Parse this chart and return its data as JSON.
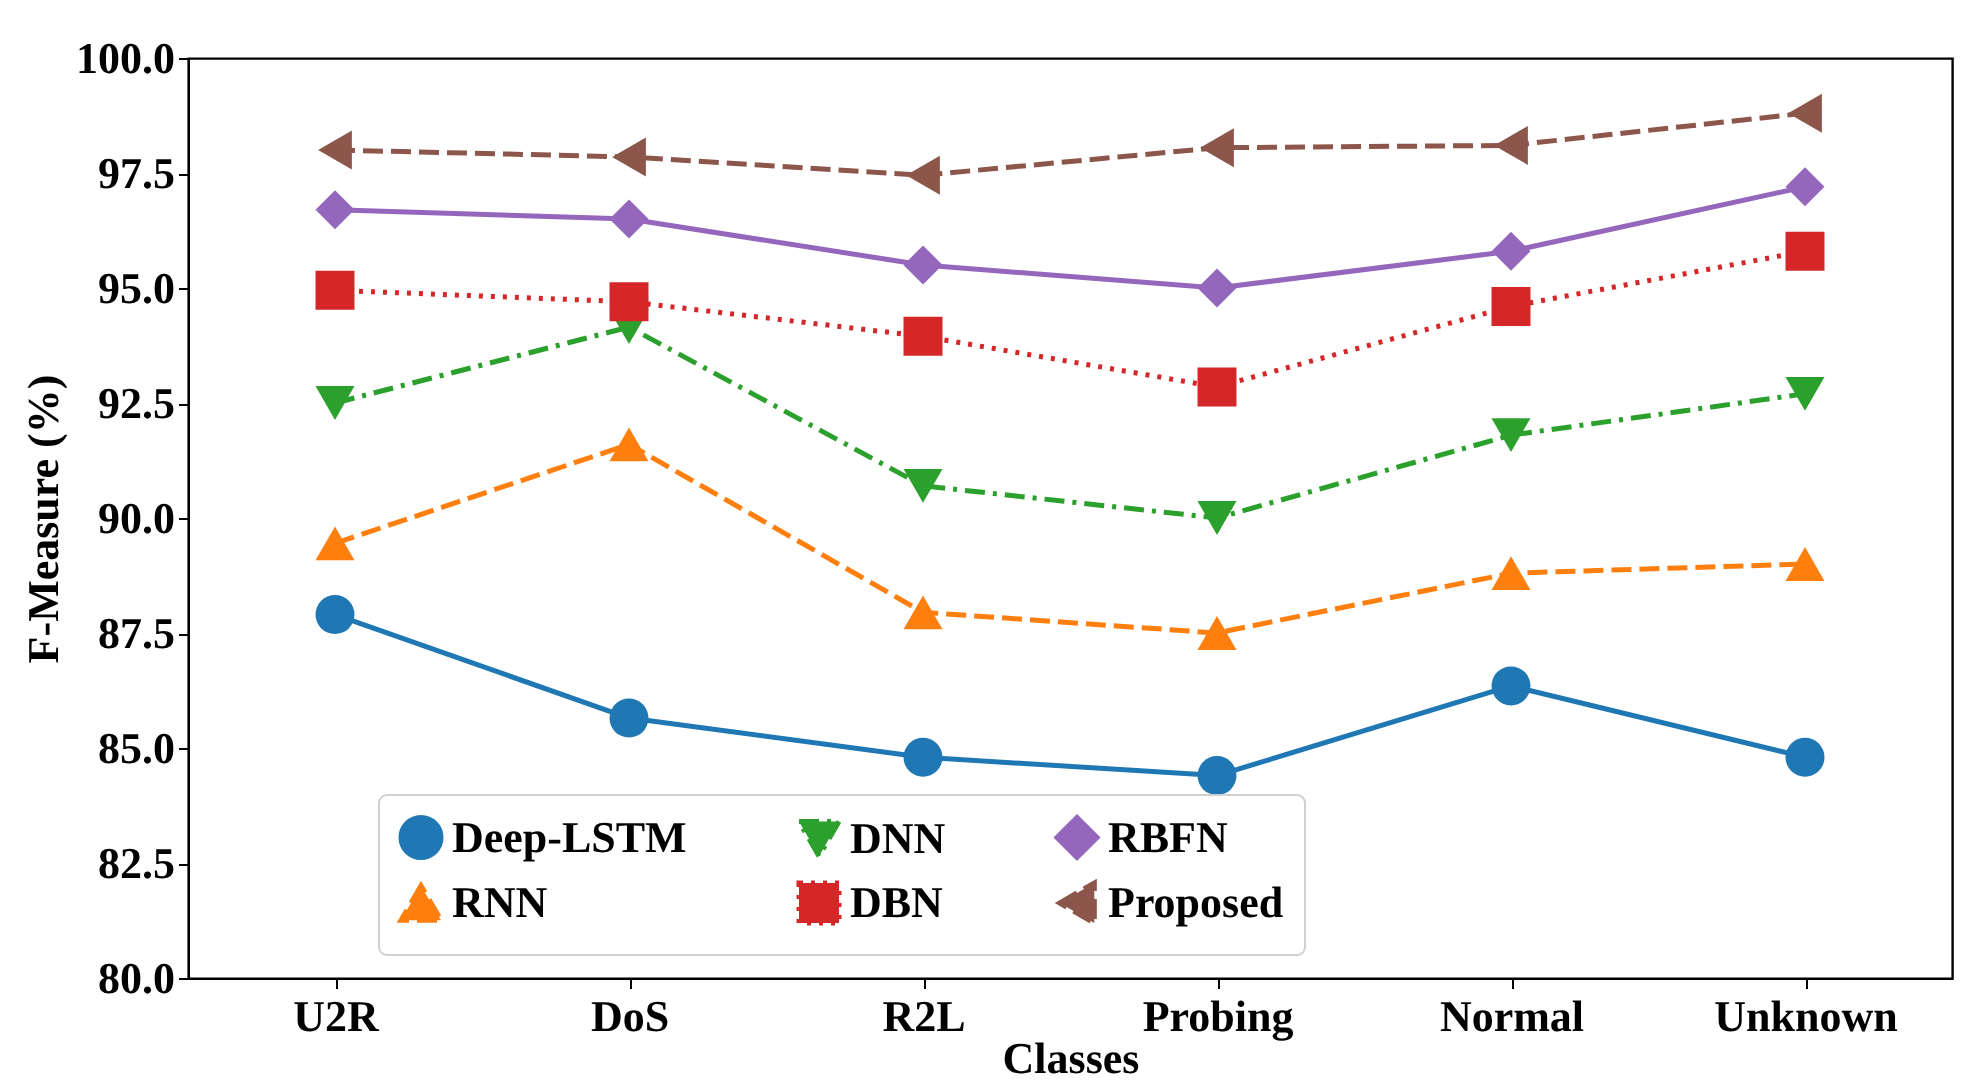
{
  "chart_data": {
    "type": "line",
    "xlabel": "Classes",
    "ylabel": "F-Measure (%)",
    "categories": [
      "U2R",
      "DoS",
      "R2L",
      "Probing",
      "Normal",
      "Unknown"
    ],
    "series": [
      {
        "name": "Deep-LSTM",
        "color": "#1f77b4",
        "marker": "circle",
        "line_style": "solid",
        "values": [
          87.9,
          85.65,
          84.8,
          84.4,
          86.35,
          84.8
        ]
      },
      {
        "name": "RNN",
        "color": "#ff7f0e",
        "marker": "triangle",
        "line_style": "dashed",
        "values": [
          89.45,
          91.6,
          87.95,
          87.5,
          88.8,
          89.0
        ]
      },
      {
        "name": "DNN",
        "color": "#2ca02c",
        "marker": "triangle-down",
        "line_style": "dashdot",
        "values": [
          92.5,
          94.15,
          90.7,
          90.0,
          91.8,
          92.7
        ]
      },
      {
        "name": "DBN",
        "color": "#d62728",
        "marker": "square",
        "line_style": "dotted",
        "values": [
          94.95,
          94.7,
          93.95,
          92.85,
          94.6,
          95.8
        ]
      },
      {
        "name": "RBFN",
        "color": "#9467bd",
        "marker": "diamond",
        "line_style": "solid",
        "values": [
          96.7,
          96.5,
          95.5,
          95.0,
          95.8,
          97.2
        ]
      },
      {
        "name": "Proposed",
        "color": "#8c564b",
        "marker": "triangle-left",
        "line_style": "dashed",
        "values": [
          98.0,
          97.85,
          97.45,
          98.05,
          98.1,
          98.8
        ]
      }
    ],
    "ylim": [
      80,
      100
    ],
    "yticks": [
      {
        "value": 80,
        "label": "80.0"
      },
      {
        "value": 82.5,
        "label": "82.5"
      },
      {
        "value": 85,
        "label": "85.0"
      },
      {
        "value": 87.5,
        "label": "87.5"
      },
      {
        "value": 90,
        "label": "90.0"
      },
      {
        "value": 92.5,
        "label": "92.5"
      },
      {
        "value": 95,
        "label": "95.0"
      },
      {
        "value": 97.5,
        "label": "97.5"
      },
      {
        "value": 100,
        "label": "100.0"
      }
    ],
    "grid": false,
    "legend": "bottom"
  }
}
